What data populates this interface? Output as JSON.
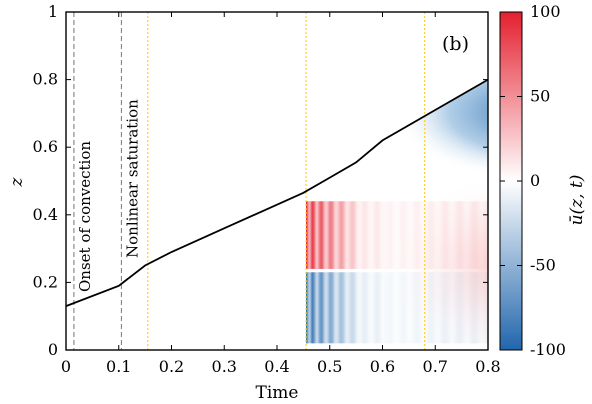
{
  "chart_data": {
    "type": "heatmap",
    "panel_label": "(b)",
    "xlabel": "Time",
    "ylabel": "z",
    "colorbar_label": "ū(z, t)",
    "xlim": [
      0,
      0.8
    ],
    "ylim": [
      0,
      1
    ],
    "x_ticks": [
      "0",
      "0.1",
      "0.2",
      "0.3",
      "0.4",
      "0.5",
      "0.6",
      "0.7",
      "0.8"
    ],
    "y_ticks": [
      "0",
      "0.2",
      "0.4",
      "0.6",
      "0.8",
      "1"
    ],
    "colorbar_range": [
      -100,
      100
    ],
    "colorbar_ticks": [
      "100",
      "50",
      "0",
      "-50",
      "-100"
    ],
    "colormap": {
      "negative": "#2166ac",
      "zero": "#ffffff",
      "positive": "#e4202f"
    },
    "boundary_line": {
      "t": [
        0,
        0.1,
        0.15,
        0.2,
        0.3,
        0.4,
        0.45,
        0.5,
        0.55,
        0.6,
        0.7,
        0.8
      ],
      "z": [
        0.13,
        0.19,
        0.25,
        0.29,
        0.36,
        0.43,
        0.465,
        0.51,
        0.555,
        0.62,
        0.71,
        0.8
      ]
    },
    "dashed_lines": [
      {
        "t": 0.015,
        "label": "Onset of convection"
      },
      {
        "t": 0.105,
        "label": "Nonlinear saturation"
      }
    ],
    "dotted_lines_t": [
      0.155,
      0.455,
      0.68
    ],
    "dotted_color": "#ffd21a"
  }
}
